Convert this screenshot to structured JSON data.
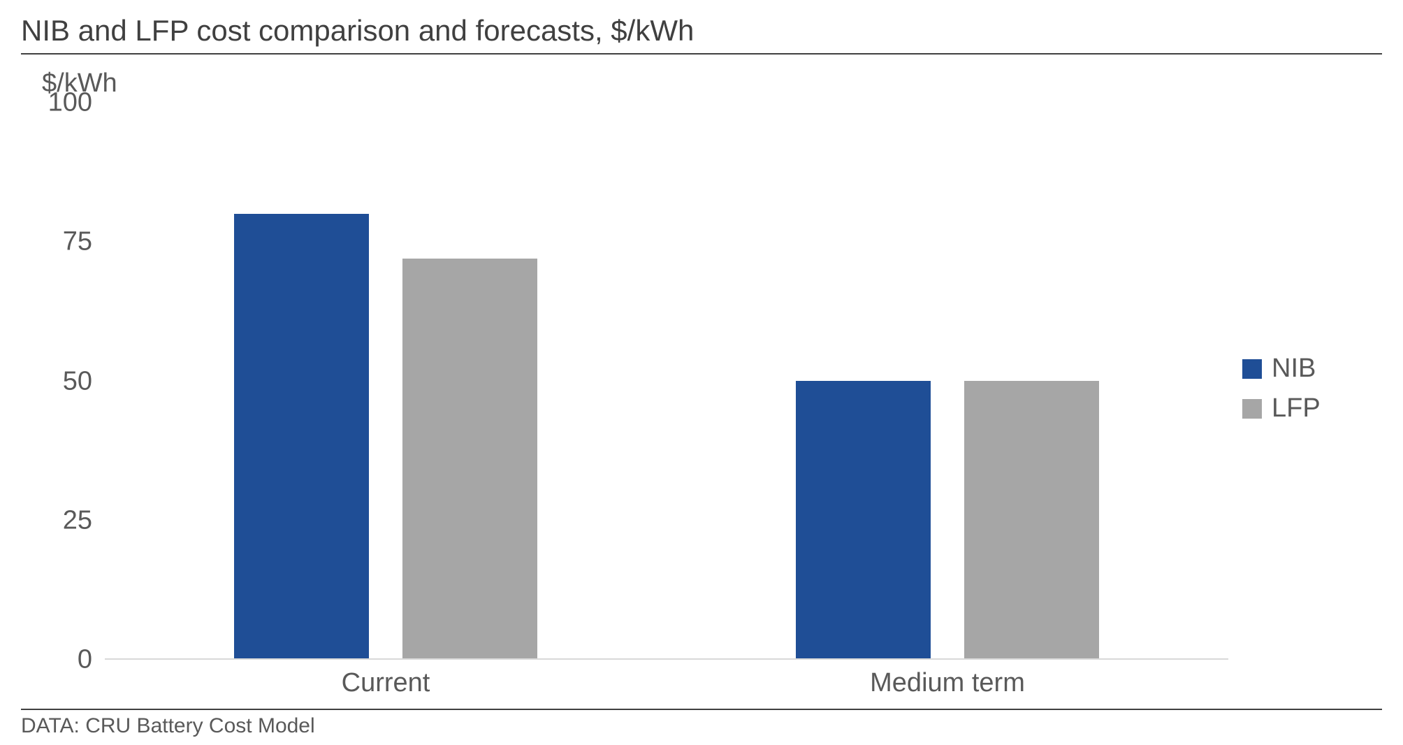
{
  "chart": {
    "type": "bar",
    "title": "NIB and LFP cost comparison and forecasts, $/kWh",
    "ylabel": "$/kWh",
    "ylim": [
      0,
      100
    ],
    "ytick_step": 25,
    "yticks": [
      0,
      25,
      50,
      75,
      100
    ],
    "categories": [
      "Current",
      "Medium term"
    ],
    "series": [
      {
        "name": "NIB",
        "color": "#1f4e96",
        "values": [
          80,
          50
        ]
      },
      {
        "name": "LFP",
        "color": "#a6a6a6",
        "values": [
          72,
          50
        ]
      }
    ],
    "bar_width_pct": 12,
    "bar_gap_pct": 3,
    "group_positions_pct": [
      25,
      75
    ],
    "background_color": "#ffffff",
    "axis_line_color": "#d9d9d9",
    "title_border_color": "#404040",
    "text_color": "#595959",
    "title_fontsize": 42,
    "label_fontsize": 38,
    "footer_fontsize": 30
  },
  "footer": {
    "text": "DATA: CRU Battery Cost Model"
  }
}
